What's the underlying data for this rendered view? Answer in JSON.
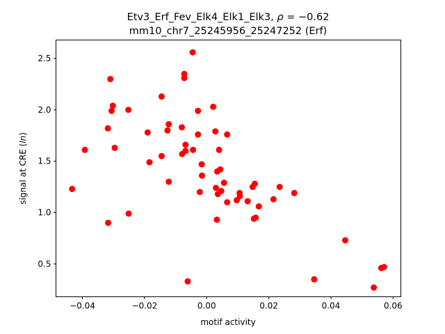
{
  "chart_data": {
    "type": "scatter",
    "title_line1": "Etv3_Erf_Fev_Elk4_Elk1_Elk3, ",
    "title_rho_symbol": "ρ",
    "title_rho_value": " = −0.62",
    "title_line2": "mm10_chr7_25245956_25247252 (Erf)",
    "xlabel": "motif activity",
    "ylabel_prefix": "signal at CRE (",
    "ylabel_italic": "ln",
    "ylabel_suffix": ")",
    "xlim": [
      -0.0485,
      0.0625
    ],
    "ylim": [
      0.18,
      2.68
    ],
    "xticks": [
      -0.04,
      -0.02,
      0.0,
      0.02,
      0.04,
      0.06
    ],
    "xtick_labels": [
      "−0.04",
      "−0.02",
      "0.00",
      "0.02",
      "0.04",
      "0.06"
    ],
    "yticks": [
      0.5,
      1.0,
      1.5,
      2.0,
      2.5
    ],
    "ytick_labels": [
      "0.5",
      "1.0",
      "1.5",
      "2.0",
      "2.5"
    ],
    "marker_color": "#ff0000",
    "points": [
      {
        "x": -0.0433,
        "y": 1.23
      },
      {
        "x": -0.0392,
        "y": 1.61
      },
      {
        "x": -0.0317,
        "y": 0.9
      },
      {
        "x": -0.0318,
        "y": 1.82
      },
      {
        "x": -0.031,
        "y": 2.3
      },
      {
        "x": -0.0306,
        "y": 1.99
      },
      {
        "x": -0.0302,
        "y": 2.04
      },
      {
        "x": -0.0296,
        "y": 1.63
      },
      {
        "x": -0.0252,
        "y": 2.0
      },
      {
        "x": -0.0251,
        "y": 0.99
      },
      {
        "x": -0.019,
        "y": 1.78
      },
      {
        "x": -0.0184,
        "y": 1.49
      },
      {
        "x": -0.0145,
        "y": 2.13
      },
      {
        "x": -0.0145,
        "y": 1.55
      },
      {
        "x": -0.0126,
        "y": 1.8
      },
      {
        "x": -0.0122,
        "y": 1.86
      },
      {
        "x": -0.0122,
        "y": 1.3
      },
      {
        "x": -0.008,
        "y": 1.83
      },
      {
        "x": -0.0079,
        "y": 1.57
      },
      {
        "x": -0.0072,
        "y": 2.35
      },
      {
        "x": -0.0072,
        "y": 2.31
      },
      {
        "x": -0.0068,
        "y": 1.66
      },
      {
        "x": -0.0068,
        "y": 1.6
      },
      {
        "x": -0.0061,
        "y": 0.33
      },
      {
        "x": -0.0045,
        "y": 2.56
      },
      {
        "x": -0.0044,
        "y": 1.61
      },
      {
        "x": -0.0028,
        "y": 1.99
      },
      {
        "x": -0.0028,
        "y": 1.76
      },
      {
        "x": -0.0022,
        "y": 1.2
      },
      {
        "x": -0.0016,
        "y": 1.47
      },
      {
        "x": -0.0015,
        "y": 1.36
      },
      {
        "x": 0.0021,
        "y": 2.03
      },
      {
        "x": 0.0028,
        "y": 1.79
      },
      {
        "x": 0.003,
        "y": 1.24
      },
      {
        "x": 0.0033,
        "y": 0.93
      },
      {
        "x": 0.0034,
        "y": 1.4
      },
      {
        "x": 0.0036,
        "y": 1.18
      },
      {
        "x": 0.004,
        "y": 1.61
      },
      {
        "x": 0.0044,
        "y": 1.42
      },
      {
        "x": 0.0047,
        "y": 1.21
      },
      {
        "x": 0.0056,
        "y": 1.29
      },
      {
        "x": 0.0066,
        "y": 1.76
      },
      {
        "x": 0.0066,
        "y": 1.1
      },
      {
        "x": 0.0097,
        "y": 1.12
      },
      {
        "x": 0.0106,
        "y": 1.19
      },
      {
        "x": 0.0107,
        "y": 1.16
      },
      {
        "x": 0.0132,
        "y": 1.11
      },
      {
        "x": 0.0148,
        "y": 1.25
      },
      {
        "x": 0.0152,
        "y": 0.94
      },
      {
        "x": 0.0155,
        "y": 1.28
      },
      {
        "x": 0.0158,
        "y": 0.95
      },
      {
        "x": 0.0168,
        "y": 1.06
      },
      {
        "x": 0.0215,
        "y": 1.13
      },
      {
        "x": 0.0235,
        "y": 1.25
      },
      {
        "x": 0.0282,
        "y": 1.19
      },
      {
        "x": 0.0346,
        "y": 0.35
      },
      {
        "x": 0.0446,
        "y": 0.73
      },
      {
        "x": 0.0538,
        "y": 0.27
      },
      {
        "x": 0.0562,
        "y": 0.46
      },
      {
        "x": 0.0571,
        "y": 0.47
      }
    ]
  }
}
